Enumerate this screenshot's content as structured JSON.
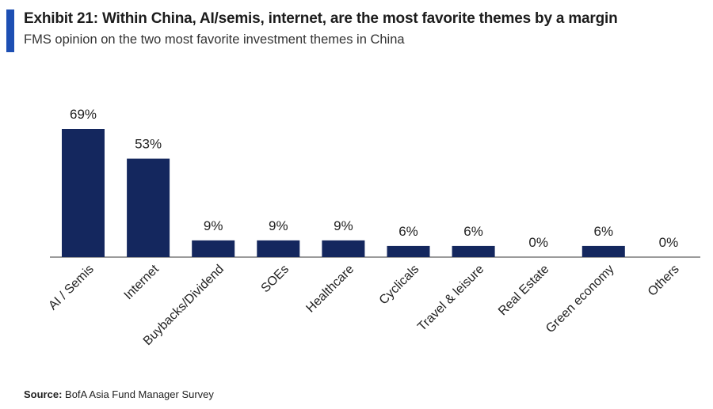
{
  "header": {
    "title": "Exhibit 21: Within China, AI/semis, internet, are the most favorite themes by a margin",
    "subtitle": "FMS opinion on the two most favorite investment themes in China"
  },
  "footer": {
    "source_label": "Source:",
    "source_text": "BofA Asia Fund Manager Survey"
  },
  "colors": {
    "accent": "#1d4fb3",
    "bar": "#14275e",
    "axis": "#7a7a7a"
  },
  "chart_data": {
    "type": "bar",
    "categories": [
      "AI / Semis",
      "Internet",
      "Buybacks/Dividend",
      "SOEs",
      "Healthcare",
      "Cyclicals",
      "Travel & leisure",
      "Real Estate",
      "Green economy",
      "Others"
    ],
    "values": [
      69,
      53,
      9,
      9,
      9,
      6,
      6,
      0,
      6,
      0
    ],
    "data_labels": [
      "69%",
      "53%",
      "9%",
      "9%",
      "9%",
      "6%",
      "6%",
      "0%",
      "6%",
      "0%"
    ],
    "ylim": [
      0,
      75
    ],
    "grid": false,
    "legend": "none"
  }
}
